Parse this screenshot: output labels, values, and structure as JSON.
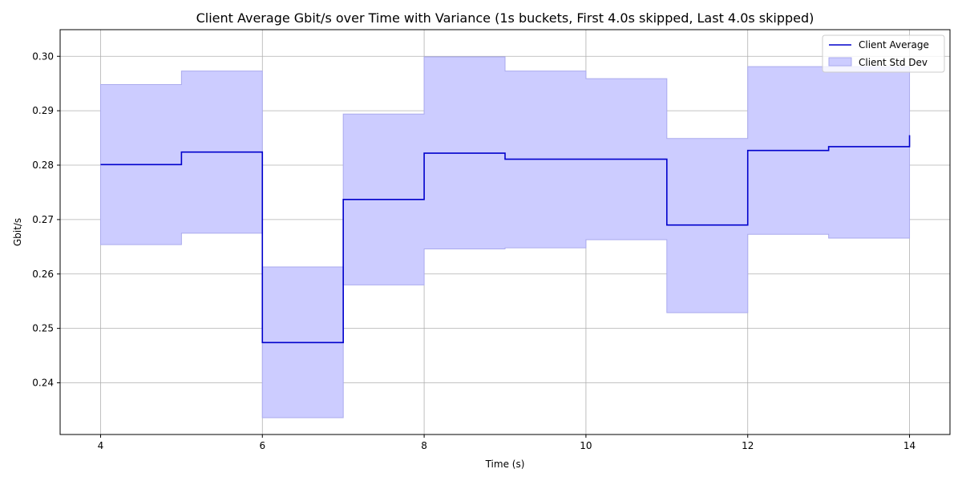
{
  "chart_data": {
    "type": "line",
    "title": "Client Average Gbit/s over Time with Variance (1s buckets, First 4.0s skipped, Last 4.0s skipped)",
    "xlabel": "Time (s)",
    "ylabel": "Gbit/s",
    "xlim": [
      3.5,
      14.5
    ],
    "ylim": [
      0.2305,
      0.3049
    ],
    "xticks": [
      4,
      6,
      8,
      10,
      12,
      14
    ],
    "yticks": [
      0.24,
      0.25,
      0.26,
      0.27,
      0.28,
      0.29,
      0.3
    ],
    "xtick_labels": [
      "4",
      "6",
      "8",
      "10",
      "12",
      "14"
    ],
    "ytick_labels": [
      "0.24",
      "0.25",
      "0.26",
      "0.27",
      "0.28",
      "0.29",
      "0.30"
    ],
    "grid": true,
    "legend_position": "top-right",
    "step": "post",
    "x": [
      4,
      5,
      6,
      7,
      8,
      9,
      10,
      11,
      12,
      13,
      14
    ],
    "series": [
      {
        "name": "Client Average",
        "values": [
          0.2801,
          0.2824,
          0.2474,
          0.2737,
          0.2822,
          0.2811,
          0.2811,
          0.269,
          0.2827,
          0.2834,
          0.2855
        ],
        "color": "#0000cc"
      },
      {
        "name": "Client Std Dev",
        "kind": "band",
        "upper": [
          0.2948,
          0.2973,
          0.2613,
          0.2894,
          0.2999,
          0.2973,
          0.2959,
          0.2849,
          0.2981,
          0.2981,
          0.2981
        ],
        "lower": [
          0.2654,
          0.2675,
          0.2336,
          0.258,
          0.2646,
          0.2648,
          0.2663,
          0.2529,
          0.2673,
          0.2666,
          0.2666
        ],
        "color": "#ccccff",
        "edge_color": "#aaaaee"
      }
    ]
  }
}
